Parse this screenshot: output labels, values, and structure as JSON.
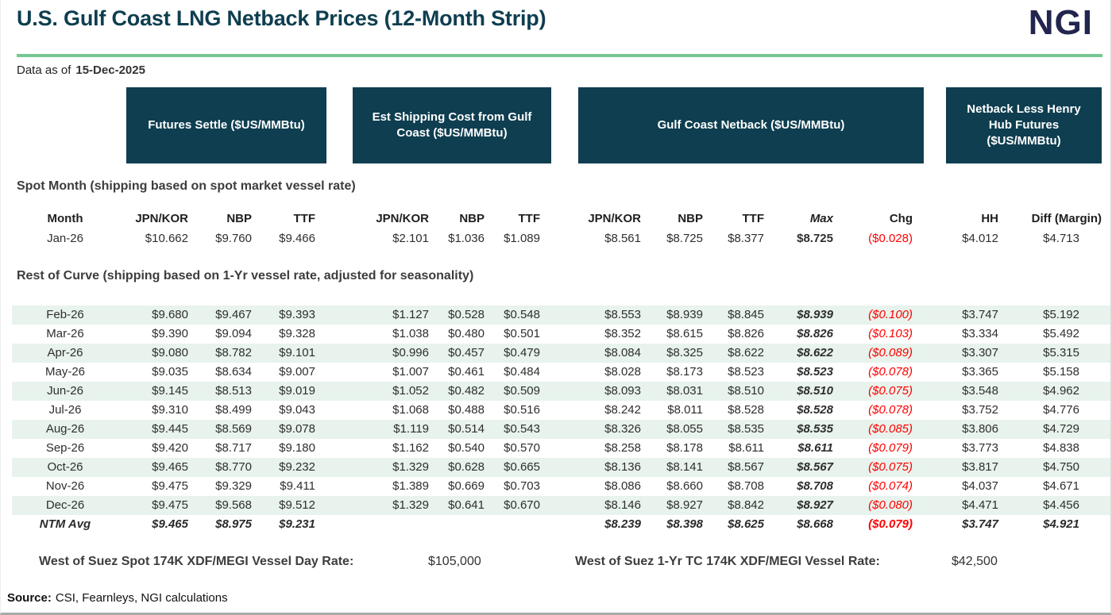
{
  "title": "U.S. Gulf Coast LNG Netback Prices (12-Month Strip)",
  "logo_text": "NGI",
  "data_as_of": {
    "label": "Data as of",
    "date": "15-Dec-2025"
  },
  "colors": {
    "teal_header": "#0e3e50",
    "accent_green": "#76c694",
    "row_stripe": "#e7f3ec",
    "negative_red": "#fe0000",
    "logo_navy": "#22254e"
  },
  "chart_data": {
    "type": "table",
    "title": "U.S. Gulf Coast LNG Netback Prices (12-Month Strip)",
    "group_headers": [
      "Futures Settle ($US/MMBtu)",
      "Est Shipping Cost from Gulf Coast ($US/MMBtu)",
      "Gulf Coast Netback ($US/MMBtu)",
      "Netback Less Henry Hub Futures ($US/MMBtu)"
    ],
    "sections": {
      "spot": "Spot Month (shipping based on spot market vessel rate)",
      "curve": "Rest of Curve (shipping based on 1-Yr vessel rate, adjusted for seasonality)"
    },
    "columns": [
      "Month",
      "JPN/KOR",
      "NBP",
      "TTF",
      "JPN/KOR",
      "NBP",
      "TTF",
      "JPN/KOR",
      "NBP",
      "TTF",
      "Max",
      "Chg",
      "HH",
      "Diff (Margin)"
    ],
    "spot_rows": [
      {
        "month": "Jan-26",
        "stripe": false,
        "total": false,
        "values": [
          "$10.662",
          "$9.760",
          "$9.466",
          "$2.101",
          "$1.036",
          "$1.089",
          "$8.561",
          "$8.725",
          "$8.377",
          "$8.725",
          "($0.028)",
          "$4.012",
          "$4.713"
        ]
      }
    ],
    "curve_rows": [
      {
        "month": "Feb-26",
        "stripe": true,
        "total": false,
        "values": [
          "$9.680",
          "$9.467",
          "$9.393",
          "$1.127",
          "$0.528",
          "$0.548",
          "$8.553",
          "$8.939",
          "$8.845",
          "$8.939",
          "($0.100)",
          "$3.747",
          "$5.192"
        ]
      },
      {
        "month": "Mar-26",
        "stripe": false,
        "total": false,
        "values": [
          "$9.390",
          "$9.094",
          "$9.328",
          "$1.038",
          "$0.480",
          "$0.501",
          "$8.352",
          "$8.615",
          "$8.826",
          "$8.826",
          "($0.103)",
          "$3.334",
          "$5.492"
        ]
      },
      {
        "month": "Apr-26",
        "stripe": true,
        "total": false,
        "values": [
          "$9.080",
          "$8.782",
          "$9.101",
          "$0.996",
          "$0.457",
          "$0.479",
          "$8.084",
          "$8.325",
          "$8.622",
          "$8.622",
          "($0.089)",
          "$3.307",
          "$5.315"
        ]
      },
      {
        "month": "May-26",
        "stripe": false,
        "total": false,
        "values": [
          "$9.035",
          "$8.634",
          "$9.007",
          "$1.007",
          "$0.461",
          "$0.484",
          "$8.028",
          "$8.173",
          "$8.523",
          "$8.523",
          "($0.078)",
          "$3.365",
          "$5.158"
        ]
      },
      {
        "month": "Jun-26",
        "stripe": true,
        "total": false,
        "values": [
          "$9.145",
          "$8.513",
          "$9.019",
          "$1.052",
          "$0.482",
          "$0.509",
          "$8.093",
          "$8.031",
          "$8.510",
          "$8.510",
          "($0.075)",
          "$3.548",
          "$4.962"
        ]
      },
      {
        "month": "Jul-26",
        "stripe": false,
        "total": false,
        "values": [
          "$9.310",
          "$8.499",
          "$9.043",
          "$1.068",
          "$0.488",
          "$0.516",
          "$8.242",
          "$8.011",
          "$8.528",
          "$8.528",
          "($0.078)",
          "$3.752",
          "$4.776"
        ]
      },
      {
        "month": "Aug-26",
        "stripe": true,
        "total": false,
        "values": [
          "$9.445",
          "$8.569",
          "$9.078",
          "$1.119",
          "$0.514",
          "$0.543",
          "$8.326",
          "$8.055",
          "$8.535",
          "$8.535",
          "($0.085)",
          "$3.806",
          "$4.729"
        ]
      },
      {
        "month": "Sep-26",
        "stripe": false,
        "total": false,
        "values": [
          "$9.420",
          "$8.717",
          "$9.180",
          "$1.162",
          "$0.540",
          "$0.570",
          "$8.258",
          "$8.178",
          "$8.611",
          "$8.611",
          "($0.079)",
          "$3.773",
          "$4.838"
        ]
      },
      {
        "month": "Oct-26",
        "stripe": true,
        "total": false,
        "values": [
          "$9.465",
          "$8.770",
          "$9.232",
          "$1.329",
          "$0.628",
          "$0.665",
          "$8.136",
          "$8.141",
          "$8.567",
          "$8.567",
          "($0.075)",
          "$3.817",
          "$4.750"
        ]
      },
      {
        "month": "Nov-26",
        "stripe": false,
        "total": false,
        "values": [
          "$9.475",
          "$9.329",
          "$9.411",
          "$1.389",
          "$0.669",
          "$0.703",
          "$8.086",
          "$8.660",
          "$8.708",
          "$8.708",
          "($0.074)",
          "$4.037",
          "$4.671"
        ]
      },
      {
        "month": "Dec-26",
        "stripe": true,
        "total": false,
        "values": [
          "$9.475",
          "$9.568",
          "$9.512",
          "$1.329",
          "$0.641",
          "$0.670",
          "$8.146",
          "$8.927",
          "$8.842",
          "$8.927",
          "($0.080)",
          "$4.471",
          "$4.456"
        ]
      },
      {
        "month": "NTM Avg",
        "stripe": false,
        "total": true,
        "values": [
          "$9.465",
          "$8.975",
          "$9.231",
          "",
          "",
          "",
          "$8.239",
          "$8.398",
          "$8.625",
          "$8.668",
          "($0.079)",
          "$3.747",
          "$4.921"
        ]
      }
    ]
  },
  "footer": {
    "spot_rate_label": "West of Suez Spot 174K XDF/MEGI Vessel Day Rate:",
    "spot_rate_value": "$105,000",
    "tc_rate_label": "West of Suez 1-Yr TC 174K XDF/MEGI Vessel Rate:",
    "tc_rate_value": "$42,500",
    "source_label": "Source:",
    "source_text": "CSI, Fearnleys, NGI calculations"
  }
}
